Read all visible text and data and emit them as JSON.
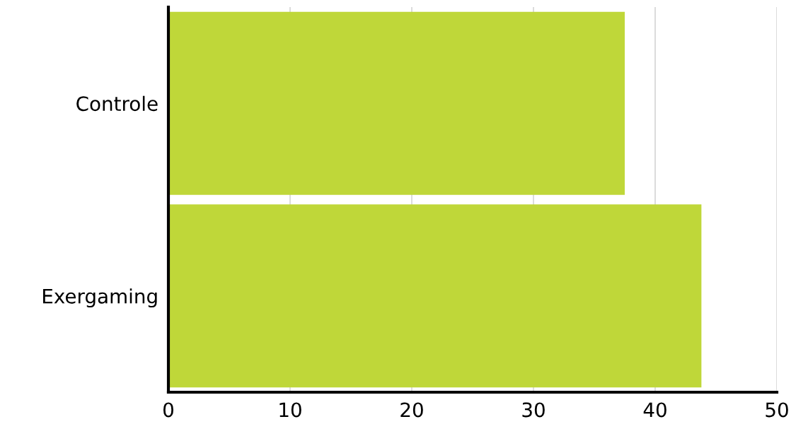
{
  "chart_data": {
    "type": "bar",
    "orientation": "horizontal",
    "categories": [
      "Controle",
      "Exergaming"
    ],
    "values": [
      37.5,
      43.8
    ],
    "color": "#bfd739",
    "xlim": [
      0,
      50
    ],
    "xticks": [
      0,
      10,
      20,
      30,
      40,
      50
    ],
    "grid": "x"
  }
}
